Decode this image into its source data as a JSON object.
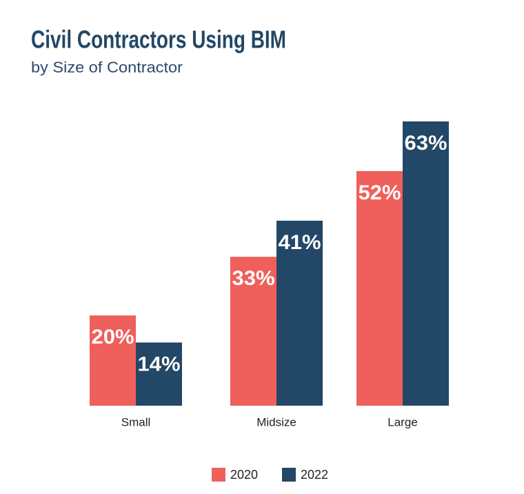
{
  "chart_data": {
    "type": "bar",
    "title": "Civil Contractors Using BIM",
    "subtitle": "by Size of Contractor",
    "categories": [
      "Small",
      "Midsize",
      "Large"
    ],
    "series": [
      {
        "name": "2020",
        "color": "#ef5f5b",
        "values": [
          20,
          33,
          52
        ],
        "value_labels": [
          "20%",
          "33%",
          "52%"
        ]
      },
      {
        "name": "2022",
        "color": "#234766",
        "values": [
          14,
          41,
          63
        ],
        "value_labels": [
          "14%",
          "41%",
          "63%"
        ]
      }
    ]
  }
}
